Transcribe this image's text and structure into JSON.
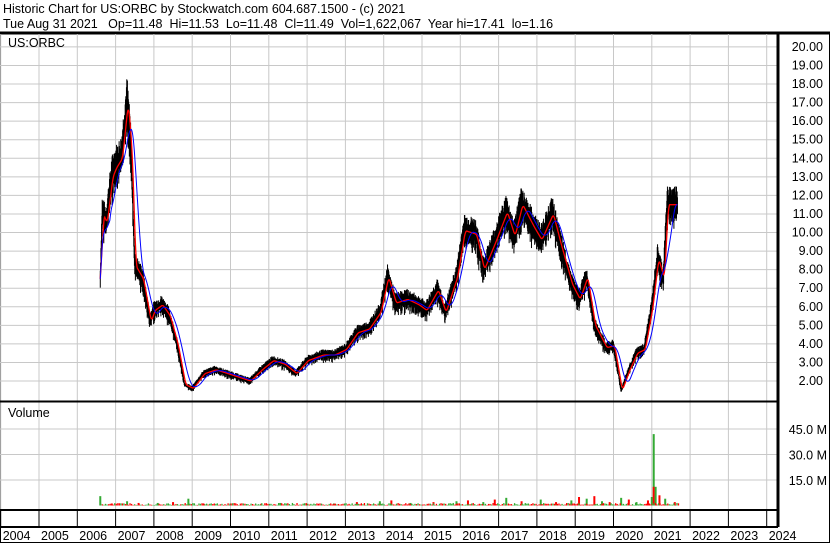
{
  "header": {
    "line1": "Historic Chart for US:ORBC by Stockwatch.com 604.687.1500 - (c) 2021",
    "line2": "Tue Aug 31 2021   Op=11.48  Hi=11.53  Lo=11.48  Cl=11.49  Vol=1,622,067  Year hi=17.41  lo=1.16"
  },
  "chart_data": {
    "type": "line",
    "symbol_label": "US:ORBC",
    "volume_label": "Volume",
    "ylim": [
      1,
      21
    ],
    "yticks": [
      "2.00",
      "3.00",
      "4.00",
      "5.00",
      "6.00",
      "7.00",
      "8.00",
      "9.00",
      "10.00",
      "11.00",
      "12.00",
      "13.00",
      "14.00",
      "15.00",
      "16.00",
      "17.00",
      "18.00",
      "19.00",
      "20.00"
    ],
    "volume_ticks": [
      "15.0 M",
      "30.0 M",
      "45.0 M"
    ],
    "xticks": [
      "2004",
      "2005",
      "2006",
      "2007",
      "2008",
      "2009",
      "2010",
      "2011",
      "2012",
      "2013",
      "2014",
      "2015",
      "2016",
      "2017",
      "2018",
      "2019",
      "2020",
      "2021",
      "2022",
      "2023",
      "2024"
    ],
    "grid": true,
    "colors": {
      "price": "#000000",
      "ma_short": "#ff0000",
      "ma_long": "#0000ff",
      "vol_up": "#33aa33",
      "vol_down": "#ff0000"
    },
    "price": [
      [
        2006.6,
        7.5
      ],
      [
        2006.65,
        11
      ],
      [
        2006.75,
        10.5
      ],
      [
        2006.9,
        13
      ],
      [
        2007.0,
        13.5
      ],
      [
        2007.15,
        14
      ],
      [
        2007.3,
        17
      ],
      [
        2007.4,
        14.5
      ],
      [
        2007.5,
        8.2
      ],
      [
        2007.7,
        7.5
      ],
      [
        2007.9,
        5.2
      ],
      [
        2008.0,
        5.8
      ],
      [
        2008.2,
        6.1
      ],
      [
        2008.4,
        5.5
      ],
      [
        2008.6,
        4.0
      ],
      [
        2008.8,
        1.8
      ],
      [
        2009.0,
        1.6
      ],
      [
        2009.3,
        2.4
      ],
      [
        2009.6,
        2.6
      ],
      [
        2009.9,
        2.4
      ],
      [
        2010.2,
        2.2
      ],
      [
        2010.5,
        2.0
      ],
      [
        2010.8,
        2.6
      ],
      [
        2011.1,
        3.1
      ],
      [
        2011.4,
        2.9
      ],
      [
        2011.7,
        2.4
      ],
      [
        2012.0,
        3.1
      ],
      [
        2012.4,
        3.4
      ],
      [
        2012.7,
        3.4
      ],
      [
        2013.0,
        3.7
      ],
      [
        2013.3,
        4.6
      ],
      [
        2013.6,
        4.8
      ],
      [
        2013.9,
        5.7
      ],
      [
        2014.1,
        7.6
      ],
      [
        2014.3,
        6.2
      ],
      [
        2014.6,
        6.4
      ],
      [
        2014.9,
        6.1
      ],
      [
        2015.1,
        5.8
      ],
      [
        2015.4,
        6.9
      ],
      [
        2015.6,
        5.7
      ],
      [
        2015.9,
        7.6
      ],
      [
        2016.1,
        10.1
      ],
      [
        2016.4,
        9.9
      ],
      [
        2016.6,
        8.0
      ],
      [
        2016.9,
        9.5
      ],
      [
        2017.2,
        11.1
      ],
      [
        2017.4,
        9.8
      ],
      [
        2017.6,
        11.5
      ],
      [
        2017.9,
        10.3
      ],
      [
        2018.1,
        9.6
      ],
      [
        2018.4,
        11.0
      ],
      [
        2018.6,
        9.4
      ],
      [
        2018.9,
        7.2
      ],
      [
        2019.1,
        6.4
      ],
      [
        2019.3,
        7.6
      ],
      [
        2019.5,
        5.0
      ],
      [
        2019.8,
        3.8
      ],
      [
        2020.0,
        3.9
      ],
      [
        2020.2,
        1.5
      ],
      [
        2020.4,
        2.6
      ],
      [
        2020.6,
        3.5
      ],
      [
        2020.8,
        3.7
      ],
      [
        2021.0,
        6.0
      ],
      [
        2021.15,
        8.6
      ],
      [
        2021.3,
        7.5
      ],
      [
        2021.4,
        11.5
      ],
      [
        2021.67,
        11.5
      ]
    ],
    "volume": [
      [
        2006.6,
        5.5
      ],
      [
        2006.9,
        1.2
      ],
      [
        2007.3,
        2.5
      ],
      [
        2007.6,
        1.5
      ],
      [
        2008.1,
        1.5
      ],
      [
        2008.5,
        2
      ],
      [
        2008.9,
        4
      ],
      [
        2009.3,
        1
      ],
      [
        2010.0,
        1.2
      ],
      [
        2010.8,
        1
      ],
      [
        2011.3,
        1.5
      ],
      [
        2012.0,
        1
      ],
      [
        2012.7,
        1.2
      ],
      [
        2013.3,
        2
      ],
      [
        2013.9,
        2.5
      ],
      [
        2014.2,
        3
      ],
      [
        2014.7,
        1.5
      ],
      [
        2015.3,
        2
      ],
      [
        2015.9,
        2.5
      ],
      [
        2016.2,
        3
      ],
      [
        2016.6,
        2
      ],
      [
        2016.9,
        3.5
      ],
      [
        2017.2,
        4.5
      ],
      [
        2017.6,
        2.5
      ],
      [
        2018.1,
        3.5
      ],
      [
        2018.5,
        2
      ],
      [
        2018.9,
        3
      ],
      [
        2019.1,
        5
      ],
      [
        2019.3,
        4
      ],
      [
        2019.5,
        5.5
      ],
      [
        2019.7,
        2.5
      ],
      [
        2019.9,
        2
      ],
      [
        2020.2,
        4.5
      ],
      [
        2020.4,
        3.5
      ],
      [
        2020.6,
        2
      ],
      [
        2020.9,
        3
      ],
      [
        2021.0,
        5
      ],
      [
        2021.05,
        42
      ],
      [
        2021.1,
        11
      ],
      [
        2021.2,
        6
      ],
      [
        2021.35,
        4
      ],
      [
        2021.6,
        2
      ]
    ]
  }
}
